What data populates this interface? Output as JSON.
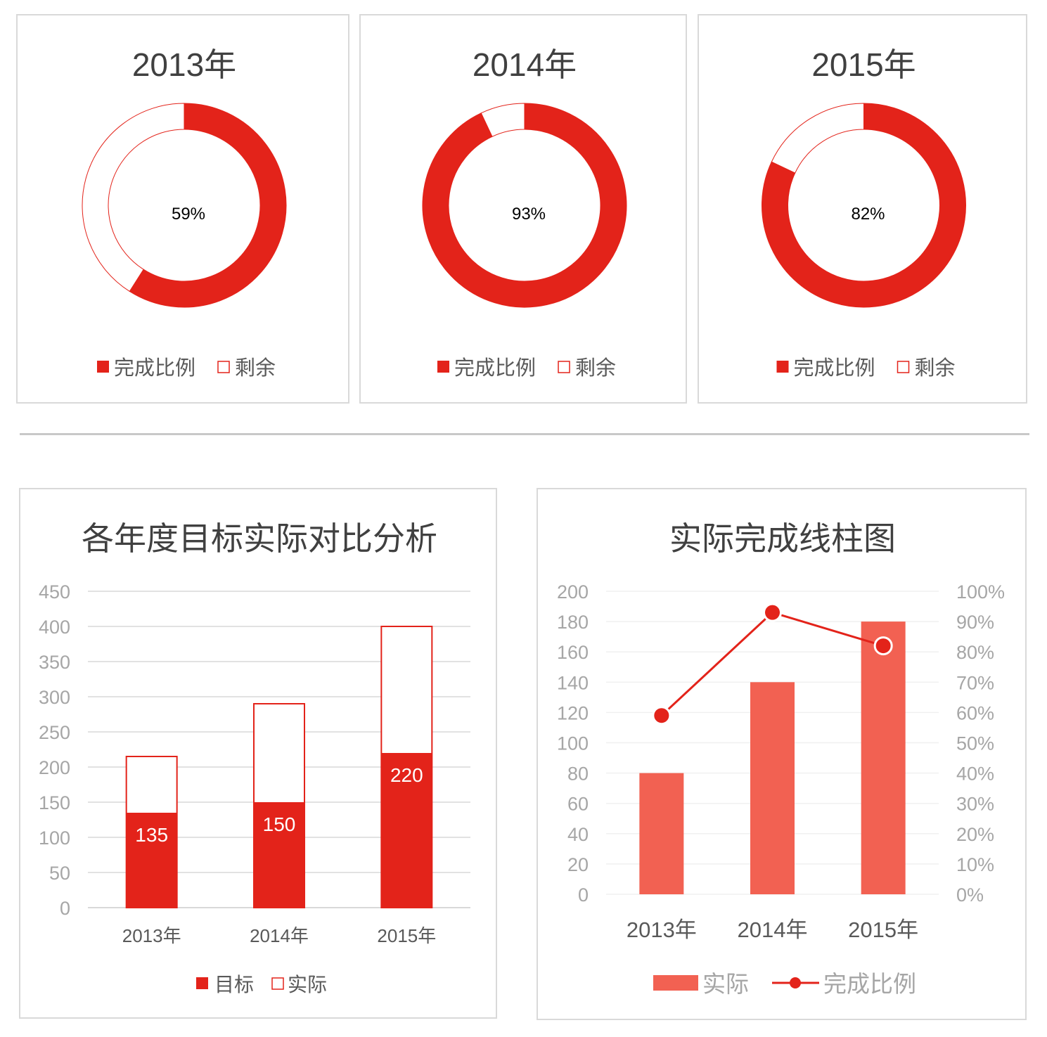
{
  "colors": {
    "red": "#e3231a",
    "light_red": "#f26152",
    "grid": "#d9d9d9",
    "axis_text": "#a6a6a6",
    "title_text": "#404040"
  },
  "chart_data": [
    {
      "type": "pie",
      "title": "2013年",
      "center_label": "59%",
      "slices": [
        {
          "name": "完成比例",
          "value": 59
        },
        {
          "name": "剩余",
          "value": 41
        }
      ]
    },
    {
      "type": "pie",
      "title": "2014年",
      "center_label": "93%",
      "slices": [
        {
          "name": "完成比例",
          "value": 93
        },
        {
          "name": "剩余",
          "value": 7
        }
      ]
    },
    {
      "type": "pie",
      "title": "2015年",
      "center_label": "82%",
      "slices": [
        {
          "name": "完成比例",
          "value": 82
        },
        {
          "name": "剩余",
          "value": 18
        }
      ]
    },
    {
      "type": "bar",
      "title": "各年度目标实际对比分析",
      "categories": [
        "2013年",
        "2014年",
        "2015年"
      ],
      "series": [
        {
          "name": "目标",
          "values": [
            135,
            150,
            220
          ]
        },
        {
          "name": "实际",
          "values": [
            215,
            290,
            400
          ]
        }
      ],
      "ylim": [
        0,
        450
      ],
      "yticks": [
        "0",
        "50",
        "100",
        "150",
        "200",
        "250",
        "300",
        "350",
        "400",
        "450"
      ],
      "legend": "bottom"
    },
    {
      "type": "bar",
      "title": "实际完成线柱图",
      "categories": [
        "2013年",
        "2014年",
        "2015年"
      ],
      "series": [
        {
          "name": "实际",
          "values": [
            80,
            140,
            180
          ]
        },
        {
          "name": "完成比例",
          "values": [
            59,
            93,
            82
          ]
        }
      ],
      "ylim": [
        0,
        200
      ],
      "yticks": [
        "0",
        "20",
        "40",
        "60",
        "80",
        "100",
        "120",
        "140",
        "160",
        "180",
        "200"
      ],
      "y2lim": [
        0,
        100
      ],
      "y2ticks": [
        "0%",
        "10%",
        "20%",
        "30%",
        "40%",
        "50%",
        "60%",
        "70%",
        "80%",
        "90%",
        "100%"
      ],
      "legend": "bottom"
    }
  ]
}
